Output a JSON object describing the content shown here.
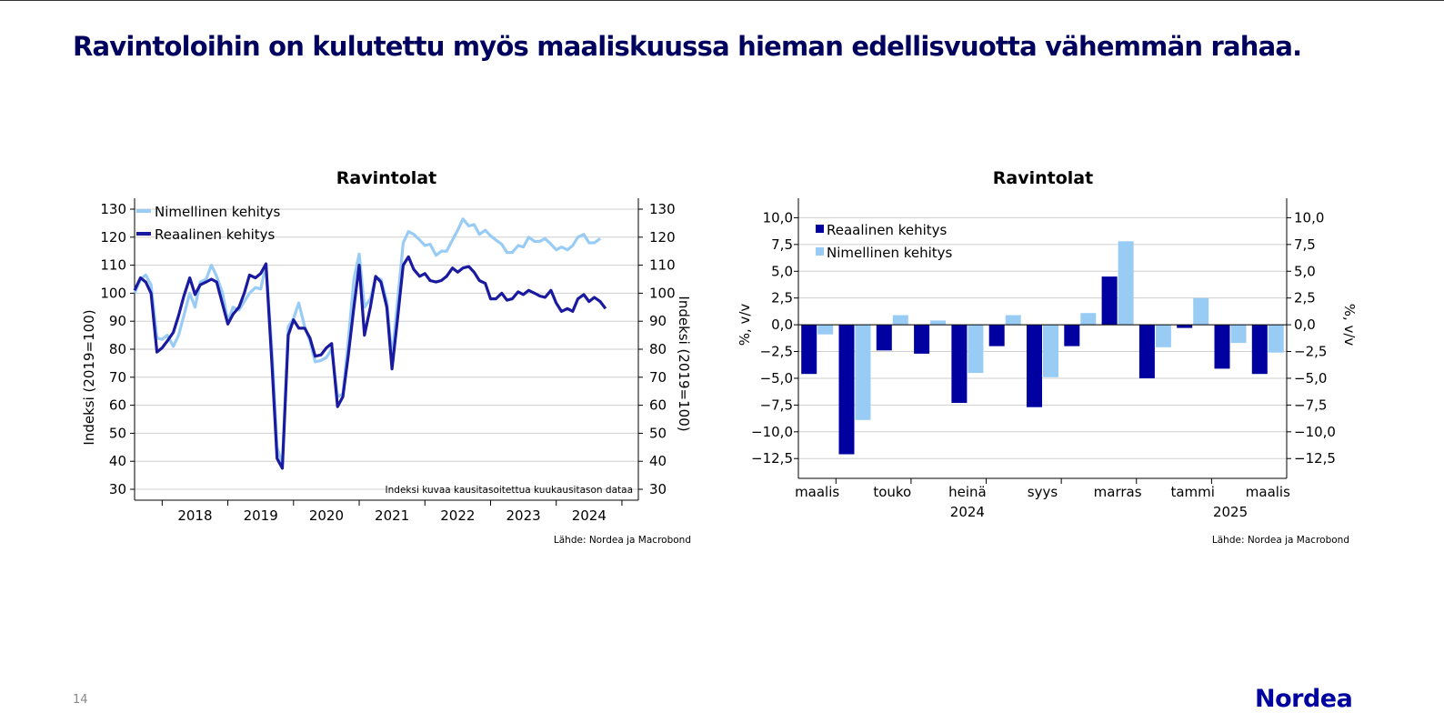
{
  "slide": {
    "title": "Ravintoloihin on kulutettu myös maaliskuussa hieman edellisvuotta vähemmän rahaa.",
    "page_number": "14",
    "logo": "Nordea"
  },
  "colors": {
    "dark_blue": "#0000a0",
    "light_blue": "#99ccf5",
    "title_blue": "#00005e"
  },
  "chart_data": [
    {
      "type": "line",
      "title": "Ravintolat",
      "ylabel": "Indeksi (2019=100)",
      "ylabel_right": "Indeksi (2019=100)",
      "ylim": [
        30,
        130
      ],
      "yticks": [
        30,
        40,
        50,
        60,
        70,
        80,
        90,
        100,
        110,
        120,
        130
      ],
      "xlim": [
        2017.58,
        2025.25
      ],
      "xtick_labels": [
        "2018",
        "2019",
        "2020",
        "2021",
        "2022",
        "2023",
        "2024"
      ],
      "note": "Indeksi kuvaa kausitasoitettua kuukausitason dataa",
      "source": "Lähde: Nordea ja Macrobond",
      "legend_position": "top-left",
      "grid": true,
      "series": [
        {
          "name": "Nimellinen kehitys",
          "color": "#99ccf5",
          "points": [
            [
              2017.58,
              100
            ],
            [
              2017.67,
              105
            ],
            [
              2017.75,
              106.5
            ],
            [
              2017.83,
              103
            ],
            [
              2017.92,
              84
            ],
            [
              2018.0,
              83.5
            ],
            [
              2018.08,
              85
            ],
            [
              2018.17,
              81
            ],
            [
              2018.25,
              85
            ],
            [
              2018.33,
              92
            ],
            [
              2018.42,
              100
            ],
            [
              2018.5,
              95
            ],
            [
              2018.58,
              104
            ],
            [
              2018.67,
              105
            ],
            [
              2018.75,
              110
            ],
            [
              2018.83,
              106
            ],
            [
              2018.92,
              100
            ],
            [
              2019.0,
              90
            ],
            [
              2019.08,
              95
            ],
            [
              2019.17,
              94
            ],
            [
              2019.25,
              97
            ],
            [
              2019.33,
              100
            ],
            [
              2019.42,
              102
            ],
            [
              2019.5,
              101.5
            ],
            [
              2019.58,
              110
            ],
            [
              2019.67,
              80
            ],
            [
              2019.75,
              45
            ],
            [
              2019.83,
              39
            ],
            [
              2019.92,
              88
            ],
            [
              2020.0,
              91
            ],
            [
              2020.08,
              96.5
            ],
            [
              2020.17,
              88
            ],
            [
              2020.25,
              83
            ],
            [
              2020.33,
              75.5
            ],
            [
              2020.42,
              76
            ],
            [
              2020.5,
              77
            ],
            [
              2020.58,
              80
            ],
            [
              2020.67,
              63
            ],
            [
              2020.75,
              64
            ],
            [
              2020.83,
              82
            ],
            [
              2020.92,
              105
            ],
            [
              2021.0,
              114
            ],
            [
              2021.08,
              95
            ],
            [
              2021.17,
              98
            ],
            [
              2021.25,
              105.5
            ],
            [
              2021.33,
              105
            ],
            [
              2021.42,
              97
            ],
            [
              2021.5,
              77
            ],
            [
              2021.58,
              96
            ],
            [
              2021.67,
              118
            ],
            [
              2021.75,
              122
            ],
            [
              2021.83,
              121
            ],
            [
              2021.92,
              119
            ],
            [
              2022.0,
              117
            ],
            [
              2022.08,
              117.5
            ],
            [
              2022.17,
              113.5
            ],
            [
              2022.25,
              115
            ],
            [
              2022.33,
              115
            ],
            [
              2022.42,
              119
            ],
            [
              2022.5,
              122.5
            ],
            [
              2022.58,
              126.5
            ],
            [
              2022.67,
              124
            ],
            [
              2022.75,
              124.5
            ],
            [
              2022.83,
              121
            ],
            [
              2022.92,
              122.5
            ],
            [
              2023.0,
              120.5
            ],
            [
              2023.08,
              119
            ],
            [
              2023.17,
              117.5
            ],
            [
              2023.25,
              114.5
            ],
            [
              2023.33,
              114.5
            ],
            [
              2023.42,
              117
            ],
            [
              2023.5,
              116.5
            ],
            [
              2023.58,
              120
            ],
            [
              2023.67,
              118.5
            ],
            [
              2023.75,
              118.5
            ],
            [
              2023.83,
              119.5
            ],
            [
              2023.92,
              117.5
            ],
            [
              2024.0,
              115.5
            ],
            [
              2024.08,
              116.5
            ],
            [
              2024.17,
              115.5
            ],
            [
              2024.25,
              117
            ],
            [
              2024.33,
              120
            ],
            [
              2024.42,
              121
            ],
            [
              2024.5,
              118
            ],
            [
              2024.58,
              118
            ],
            [
              2024.67,
              119.5
            ]
          ]
        },
        {
          "name": "Reaalinen kehitys",
          "color": "#1a1aa0",
          "points": [
            [
              2017.58,
              101
            ],
            [
              2017.67,
              105.5
            ],
            [
              2017.75,
              104
            ],
            [
              2017.83,
              100
            ],
            [
              2017.92,
              79
            ],
            [
              2018.0,
              80.5
            ],
            [
              2018.08,
              83
            ],
            [
              2018.17,
              86
            ],
            [
              2018.25,
              92
            ],
            [
              2018.33,
              99
            ],
            [
              2018.42,
              105.5
            ],
            [
              2018.5,
              99.5
            ],
            [
              2018.58,
              103
            ],
            [
              2018.67,
              104
            ],
            [
              2018.75,
              105
            ],
            [
              2018.83,
              104
            ],
            [
              2018.92,
              96
            ],
            [
              2019.0,
              89
            ],
            [
              2019.08,
              92.5
            ],
            [
              2019.17,
              95
            ],
            [
              2019.25,
              100
            ],
            [
              2019.33,
              106.5
            ],
            [
              2019.42,
              105.5
            ],
            [
              2019.5,
              107
            ],
            [
              2019.58,
              110.5
            ],
            [
              2019.67,
              75
            ],
            [
              2019.75,
              41
            ],
            [
              2019.83,
              37.5
            ],
            [
              2019.92,
              85
            ],
            [
              2020.0,
              90.5
            ],
            [
              2020.08,
              87.5
            ],
            [
              2020.17,
              87.5
            ],
            [
              2020.25,
              84
            ],
            [
              2020.33,
              77.5
            ],
            [
              2020.42,
              78
            ],
            [
              2020.5,
              80.5
            ],
            [
              2020.58,
              82
            ],
            [
              2020.67,
              59.5
            ],
            [
              2020.75,
              63
            ],
            [
              2020.83,
              77
            ],
            [
              2020.92,
              95
            ],
            [
              2021.0,
              110
            ],
            [
              2021.08,
              85
            ],
            [
              2021.17,
              95
            ],
            [
              2021.25,
              106
            ],
            [
              2021.33,
              104
            ],
            [
              2021.42,
              95
            ],
            [
              2021.5,
              73
            ],
            [
              2021.58,
              90
            ],
            [
              2021.67,
              110
            ],
            [
              2021.75,
              113
            ],
            [
              2021.83,
              108.5
            ],
            [
              2021.92,
              106
            ],
            [
              2022.0,
              107
            ],
            [
              2022.08,
              104.5
            ],
            [
              2022.17,
              104
            ],
            [
              2022.25,
              104.5
            ],
            [
              2022.33,
              106
            ],
            [
              2022.42,
              109
            ],
            [
              2022.5,
              107.5
            ],
            [
              2022.58,
              109
            ],
            [
              2022.67,
              109.5
            ],
            [
              2022.75,
              107.5
            ],
            [
              2022.83,
              104.5
            ],
            [
              2022.92,
              103.5
            ],
            [
              2023.0,
              98
            ],
            [
              2023.08,
              98
            ],
            [
              2023.17,
              100
            ],
            [
              2023.25,
              97.5
            ],
            [
              2023.33,
              98
            ],
            [
              2023.42,
              100.5
            ],
            [
              2023.5,
              99.5
            ],
            [
              2023.58,
              101
            ],
            [
              2023.67,
              100
            ],
            [
              2023.75,
              99
            ],
            [
              2023.83,
              98.5
            ],
            [
              2023.92,
              101
            ],
            [
              2024.0,
              96.5
            ],
            [
              2024.08,
              93.5
            ],
            [
              2024.17,
              94.5
            ],
            [
              2024.25,
              93.5
            ],
            [
              2024.33,
              98
            ],
            [
              2024.42,
              99.5
            ],
            [
              2024.5,
              97
            ],
            [
              2024.58,
              98.5
            ],
            [
              2024.67,
              97
            ],
            [
              2024.75,
              94.5
            ]
          ]
        }
      ]
    },
    {
      "type": "bar",
      "title": "Ravintolat",
      "ylabel": "%, v/v",
      "ylabel_right": "%, v/v",
      "ylim": [
        -13.5,
        10.8
      ],
      "yticks": [
        -12.5,
        -10.0,
        -7.5,
        -5.0,
        -2.5,
        0.0,
        2.5,
        5.0,
        7.5,
        10.0
      ],
      "ytick_labels": [
        "−12,5",
        "−10,0",
        "−7,5",
        "−5,0",
        "−2,5",
        "0,0",
        "2,5",
        "5,0",
        "7,5",
        "10,0"
      ],
      "categories": [
        "2024-03",
        "2024-04",
        "2024-05",
        "2024-06",
        "2024-07",
        "2024-08",
        "2024-09",
        "2024-10",
        "2024-11",
        "2024-12",
        "2025-01",
        "2025-02",
        "2025-03"
      ],
      "xtick_labels": [
        {
          "index": 0,
          "label": "maalis"
        },
        {
          "index": 2,
          "label": "touko"
        },
        {
          "index": 4,
          "label": "heinä"
        },
        {
          "index": 6,
          "label": "syys"
        },
        {
          "index": 8,
          "label": "marras"
        },
        {
          "index": 10,
          "label": "tammi"
        },
        {
          "index": 12,
          "label": "maalis"
        }
      ],
      "year_labels": [
        {
          "index": 4,
          "label": "2024"
        },
        {
          "index": 11,
          "label": "2025"
        }
      ],
      "source": "Lähde: Nordea ja Macrobond",
      "legend_position": "top-left",
      "grid": true,
      "series": [
        {
          "name": "Reaalinen kehitys",
          "color": "#0000a0",
          "values": [
            -4.6,
            -12.1,
            -2.4,
            -2.7,
            -7.3,
            -2.0,
            -7.7,
            -2.0,
            4.5,
            -5.0,
            -0.3,
            -4.1,
            -4.6
          ]
        },
        {
          "name": "Nimellinen kehitys",
          "color": "#99ccf5",
          "values": [
            -0.9,
            -8.9,
            0.9,
            0.4,
            -4.5,
            0.9,
            -4.9,
            1.1,
            7.8,
            -2.1,
            2.5,
            -1.7,
            -2.6
          ]
        }
      ]
    }
  ]
}
